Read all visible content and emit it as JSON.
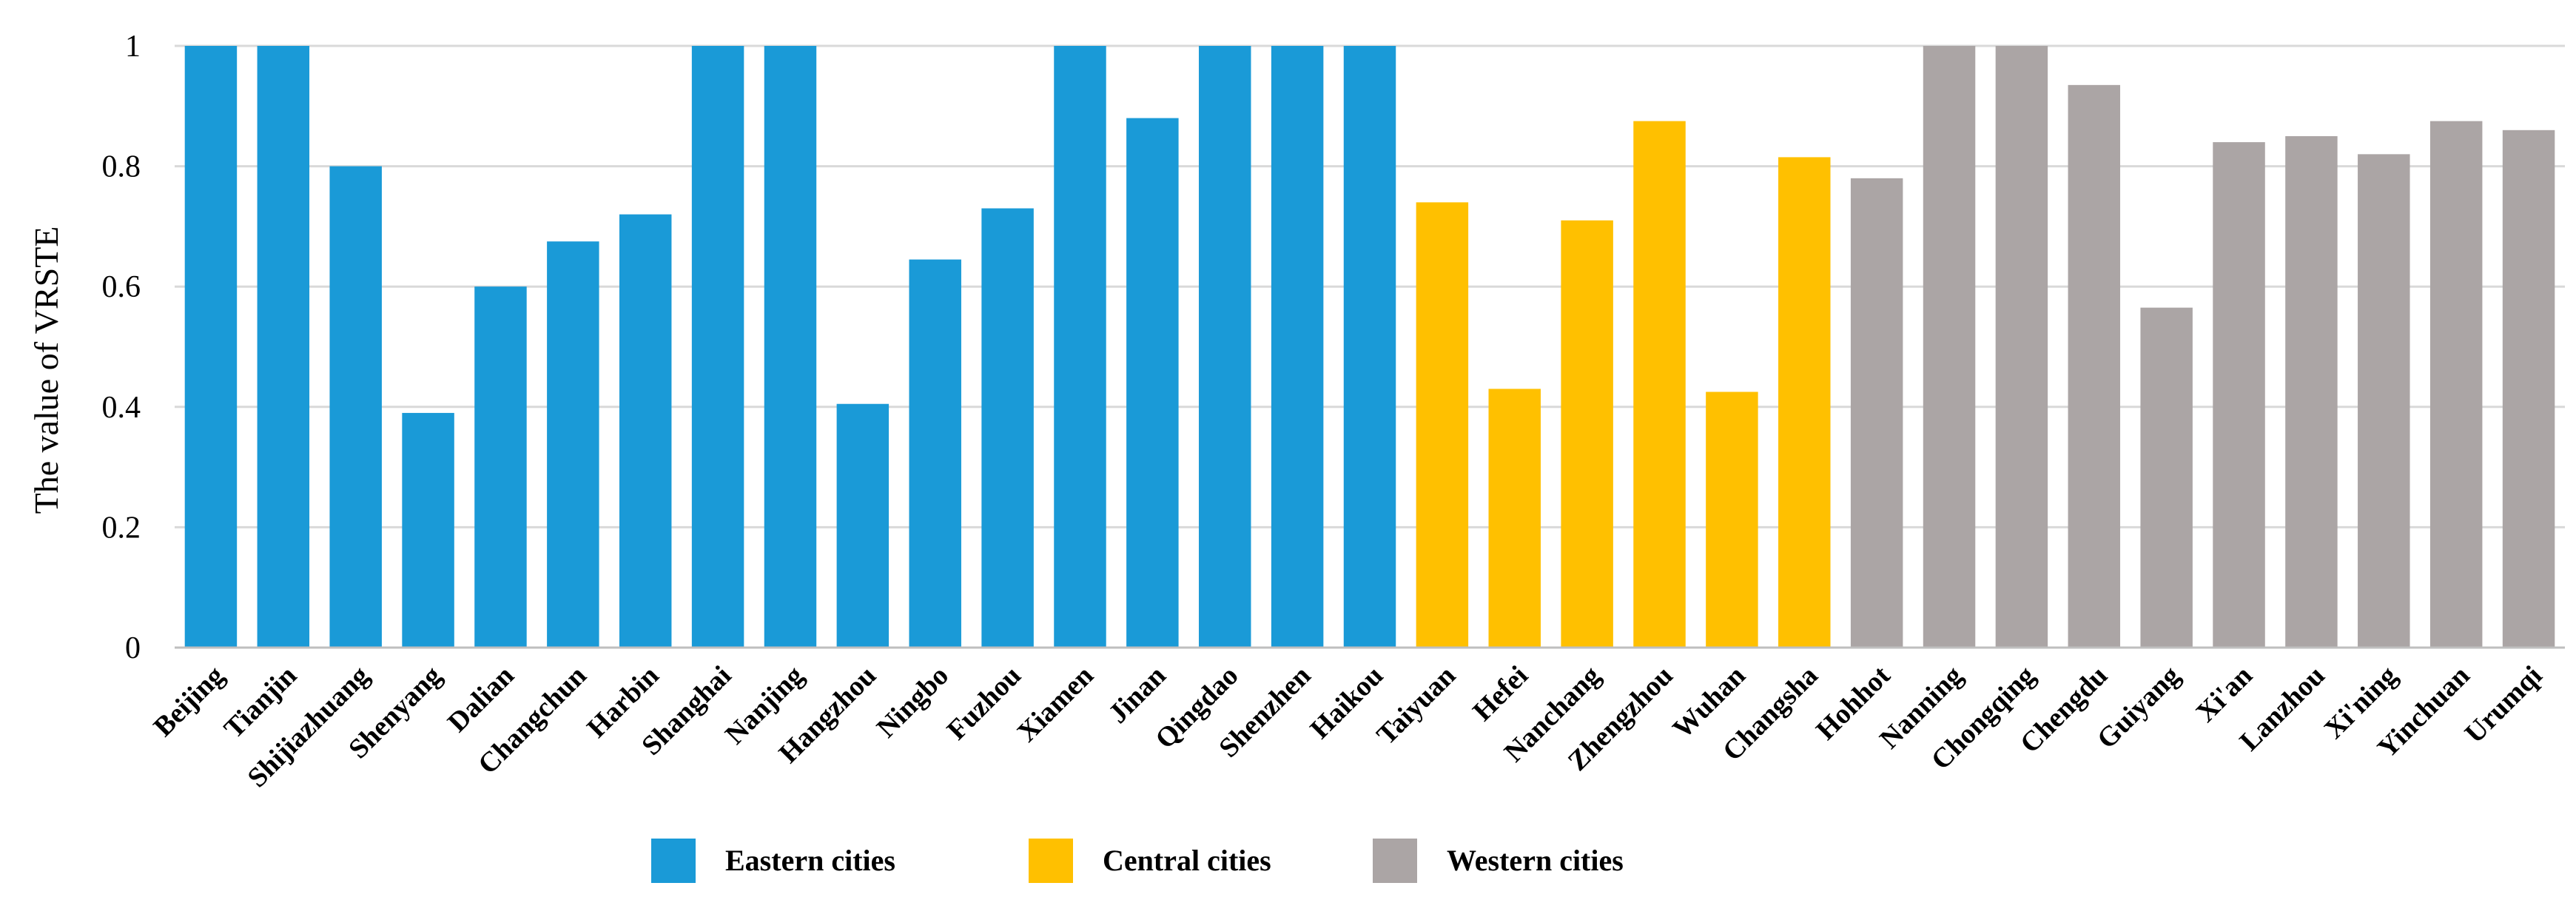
{
  "chart_data": {
    "type": "bar",
    "title": "",
    "xlabel": "",
    "ylabel": "The value of VRSTE",
    "ylim": [
      0,
      1
    ],
    "yticks": [
      "0",
      "0.2",
      "0.4",
      "0.6",
      "0.8",
      "1"
    ],
    "ytick_values": [
      0,
      0.2,
      0.4,
      0.6,
      0.8,
      1
    ],
    "grid": true,
    "legend_position": "bottom",
    "categories": [
      "Beijing",
      "Tianjin",
      "Shijiazhuang",
      "Shenyang",
      "Dalian",
      "Changchun",
      "Harbin",
      "Shanghai",
      "Nanjing",
      "Hangzhou",
      "Ningbo",
      "Fuzhou",
      "Xiamen",
      "Jinan",
      "Qingdao",
      "Shenzhen",
      "Haikou",
      "Taiyuan",
      "Hefei",
      "Nanchang",
      "Zhengzhou",
      "Wuhan",
      "Changsha",
      "Hohhot",
      "Nanning",
      "Chongqing",
      "Chengdu",
      "Guiyang",
      "Xi'an",
      "Lanzhou",
      "Xi'ning",
      "Yinchuan",
      "Urumqi"
    ],
    "values": [
      1,
      1,
      0.8,
      0.39,
      0.6,
      0.675,
      0.72,
      1,
      1,
      0.405,
      0.645,
      0.73,
      1,
      0.88,
      1,
      1,
      1,
      0.74,
      0.43,
      0.71,
      0.875,
      0.425,
      0.815,
      0.78,
      1,
      1,
      0.935,
      0.565,
      0.84,
      0.85,
      0.82,
      0.875,
      0.86
    ],
    "groups": [
      "Eastern",
      "Eastern",
      "Eastern",
      "Eastern",
      "Eastern",
      "Eastern",
      "Eastern",
      "Eastern",
      "Eastern",
      "Eastern",
      "Eastern",
      "Eastern",
      "Eastern",
      "Eastern",
      "Eastern",
      "Eastern",
      "Eastern",
      "Central",
      "Central",
      "Central",
      "Central",
      "Central",
      "Central",
      "Western",
      "Western",
      "Western",
      "Western",
      "Western",
      "Western",
      "Western",
      "Western",
      "Western",
      "Western"
    ],
    "legend": [
      {
        "key": "Eastern",
        "label": "Eastern cities",
        "color": "#1a9ad7"
      },
      {
        "key": "Central",
        "label": "Central cities",
        "color": "#ffc000"
      },
      {
        "key": "Western",
        "label": "Western cities",
        "color": "#aba5a5"
      }
    ]
  }
}
